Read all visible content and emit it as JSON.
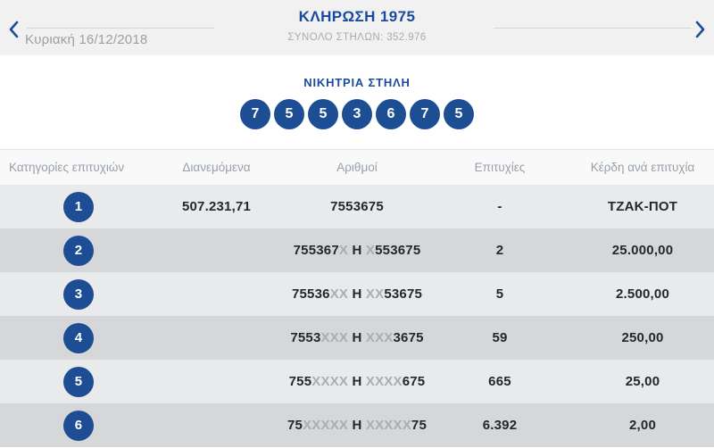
{
  "colors": {
    "accent_blue": "#1a4a9d",
    "ball_blue": "#1d4e94",
    "muted_x_gray": "#a9aeb4",
    "dark_text": "#24272b",
    "table_header_gray": "#98a0a8",
    "row_odd_bg": "#e9eaeb",
    "row_even_bg": "#d6d7d9",
    "top_bar_bg": "#f1f1f2"
  },
  "header": {
    "title": "ΚΛΗΡΩΣΗ 1975",
    "subtitle": "ΣΥΝΟΛΟ ΣΤΗΛΩΝ: 352.976",
    "date": "Κυριακή 16/12/2018",
    "prev_icon": "chevron-left",
    "next_icon": "chevron-right"
  },
  "winning": {
    "label": "ΝΙΚΗΤΡΙΑ ΣΤΗΛΗ",
    "numbers": [
      "7",
      "5",
      "5",
      "3",
      "6",
      "7",
      "5"
    ]
  },
  "table": {
    "headers": [
      "Κατηγορίες επιτυχιών",
      "Διανεμόμενα",
      "Αριθμοί",
      "Επιτυχίες",
      "Κέρδη ανά επιτυχία"
    ],
    "rows": [
      {
        "category": "1",
        "distributed": "507.231,71",
        "numbers": [
          {
            "text": "7553675",
            "muted": false
          }
        ],
        "wins": "-",
        "prize": "ΤΖΑΚ-ΠΟΤ"
      },
      {
        "category": "2",
        "distributed": "",
        "numbers": [
          {
            "text": "755367",
            "muted": false
          },
          {
            "text": "X",
            "muted": true
          },
          {
            "text": " Η ",
            "muted": false
          },
          {
            "text": "X",
            "muted": true
          },
          {
            "text": "553675",
            "muted": false
          }
        ],
        "wins": "2",
        "prize": "25.000,00"
      },
      {
        "category": "3",
        "distributed": "",
        "numbers": [
          {
            "text": "75536",
            "muted": false
          },
          {
            "text": "XX",
            "muted": true
          },
          {
            "text": " Η ",
            "muted": false
          },
          {
            "text": "XX",
            "muted": true
          },
          {
            "text": "53675",
            "muted": false
          }
        ],
        "wins": "5",
        "prize": "2.500,00"
      },
      {
        "category": "4",
        "distributed": "",
        "numbers": [
          {
            "text": "7553",
            "muted": false
          },
          {
            "text": "XXX",
            "muted": true
          },
          {
            "text": " Η ",
            "muted": false
          },
          {
            "text": "XXX",
            "muted": true
          },
          {
            "text": "3675",
            "muted": false
          }
        ],
        "wins": "59",
        "prize": "250,00"
      },
      {
        "category": "5",
        "distributed": "",
        "numbers": [
          {
            "text": "755",
            "muted": false
          },
          {
            "text": "XXXX",
            "muted": true
          },
          {
            "text": " Η ",
            "muted": false
          },
          {
            "text": "XXXX",
            "muted": true
          },
          {
            "text": "675",
            "muted": false
          }
        ],
        "wins": "665",
        "prize": "25,00"
      },
      {
        "category": "6",
        "distributed": "",
        "numbers": [
          {
            "text": "75",
            "muted": false
          },
          {
            "text": "XXXXX",
            "muted": true
          },
          {
            "text": " Η ",
            "muted": false
          },
          {
            "text": "XXXXX",
            "muted": true
          },
          {
            "text": "75",
            "muted": false
          }
        ],
        "wins": "6.392",
        "prize": "2,00"
      }
    ]
  }
}
